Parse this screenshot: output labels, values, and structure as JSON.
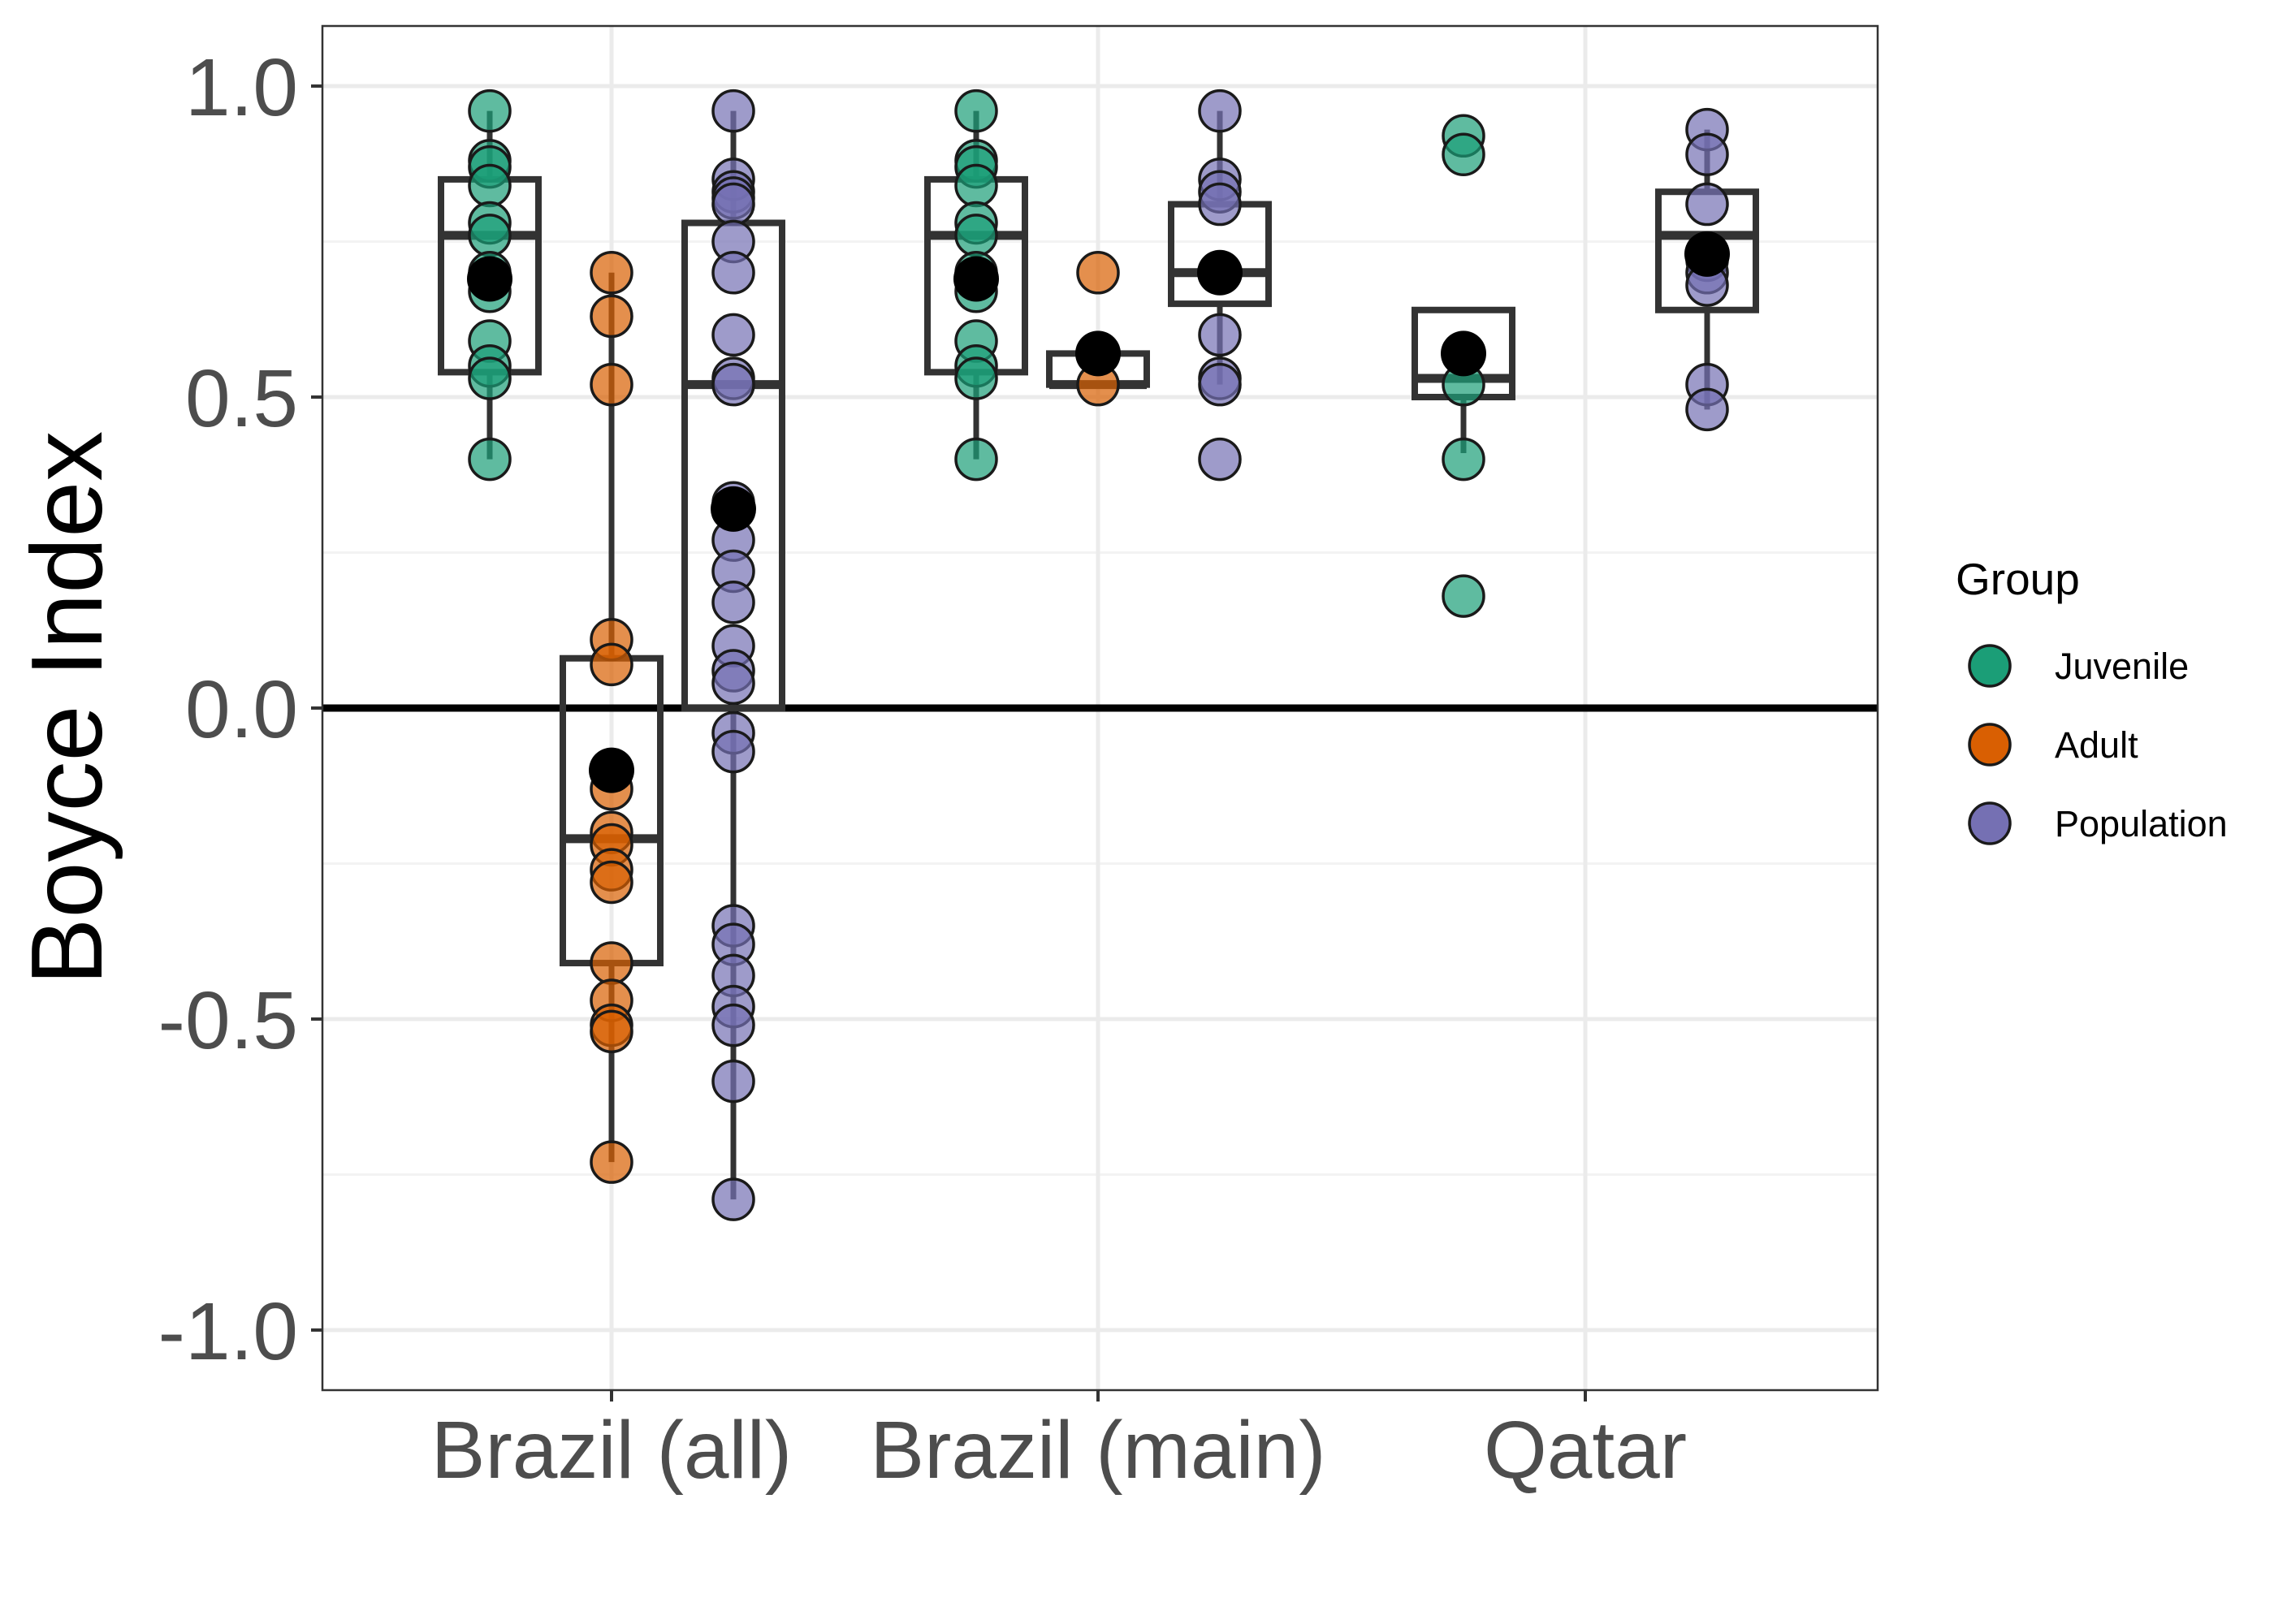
{
  "chart_data": {
    "type": "boxplot",
    "ylabel": "Boyce Index",
    "xlabel": "",
    "ylim": [
      -1.1,
      1.1
    ],
    "y_ticks": [
      "1.0",
      "0.5",
      "0.0",
      "-0.5",
      "-1.0"
    ],
    "y_tick_values": [
      1.0,
      0.5,
      0.0,
      -0.5,
      -1.0
    ],
    "categories": [
      "Brazil (all)",
      "Brazil (main)",
      "Qatar"
    ],
    "grid": true,
    "reference_line": 0,
    "legend": {
      "title": "Group",
      "position": "right",
      "entries": [
        {
          "label": "Juvenile",
          "color": "#1B9E77"
        },
        {
          "label": "Adult",
          "color": "#D95F02"
        },
        {
          "label": "Population",
          "color": "#7570B3"
        }
      ]
    },
    "series": [
      {
        "category": "Brazil (all)",
        "group": "Juvenile",
        "color": "#1B9E77",
        "box": {
          "whisker_low": 0.4,
          "q1": 0.54,
          "median": 0.76,
          "q3": 0.85,
          "whisker_high": 0.96
        },
        "mean": 0.69,
        "points": [
          0.96,
          0.88,
          0.87,
          0.84,
          0.78,
          0.76,
          0.7,
          0.67,
          0.59,
          0.55,
          0.53,
          0.4
        ]
      },
      {
        "category": "Brazil (all)",
        "group": "Adult",
        "color": "#D95F02",
        "box": {
          "whisker_low": -0.73,
          "q1": -0.41,
          "median": -0.21,
          "q3": 0.08,
          "whisker_high": 0.7
        },
        "mean": -0.1,
        "points": [
          0.7,
          0.63,
          0.52,
          0.11,
          0.07,
          -0.13,
          -0.2,
          -0.22,
          -0.26,
          -0.28,
          -0.41,
          -0.47,
          -0.51,
          -0.52,
          -0.73
        ]
      },
      {
        "category": "Brazil (all)",
        "group": "Population",
        "color": "#7570B3",
        "box": {
          "whisker_low": -0.79,
          "q1": 0.0,
          "median": 0.52,
          "q3": 0.78,
          "whisker_high": 0.96
        },
        "mean": 0.32,
        "points": [
          0.96,
          0.85,
          0.83,
          0.82,
          0.81,
          0.75,
          0.7,
          0.6,
          0.53,
          0.52,
          0.33,
          0.32,
          0.27,
          0.22,
          0.17,
          0.1,
          0.06,
          0.04,
          -0.04,
          -0.07,
          -0.35,
          -0.38,
          -0.43,
          -0.48,
          -0.51,
          -0.6,
          -0.79
        ]
      },
      {
        "category": "Brazil (main)",
        "group": "Juvenile",
        "color": "#1B9E77",
        "box": {
          "whisker_low": 0.4,
          "q1": 0.54,
          "median": 0.76,
          "q3": 0.85,
          "whisker_high": 0.96
        },
        "mean": 0.69,
        "points": [
          0.96,
          0.88,
          0.87,
          0.84,
          0.78,
          0.76,
          0.7,
          0.67,
          0.59,
          0.55,
          0.53,
          0.4
        ]
      },
      {
        "category": "Brazil (main)",
        "group": "Adult",
        "color": "#D95F02",
        "box": {
          "whisker_low": 0.52,
          "q1": 0.52,
          "median": 0.52,
          "q3": 0.57,
          "whisker_high": 0.57
        },
        "mean": 0.57,
        "points": [
          0.7,
          0.52
        ]
      },
      {
        "category": "Brazil (main)",
        "group": "Population",
        "color": "#7570B3",
        "box": {
          "whisker_low": 0.52,
          "q1": 0.65,
          "median": 0.7,
          "q3": 0.81,
          "whisker_high": 0.96
        },
        "mean": 0.7,
        "points": [
          0.96,
          0.85,
          0.83,
          0.81,
          0.7,
          0.6,
          0.53,
          0.52,
          0.4
        ]
      },
      {
        "category": "Qatar",
        "group": "Juvenile",
        "color": "#1B9E77",
        "box": {
          "whisker_low": 0.41,
          "q1": 0.5,
          "median": 0.53,
          "q3": 0.64,
          "whisker_high": 0.64
        },
        "mean": 0.57,
        "points": [
          0.92,
          0.89,
          0.52,
          0.4,
          0.18
        ]
      },
      {
        "category": "Qatar",
        "group": "Population",
        "color": "#7570B3",
        "box": {
          "whisker_low": 0.48,
          "q1": 0.64,
          "median": 0.76,
          "q3": 0.83,
          "whisker_high": 0.93
        },
        "mean": 0.73,
        "points": [
          0.93,
          0.89,
          0.81,
          0.72,
          0.7,
          0.68,
          0.52,
          0.48
        ]
      }
    ]
  }
}
